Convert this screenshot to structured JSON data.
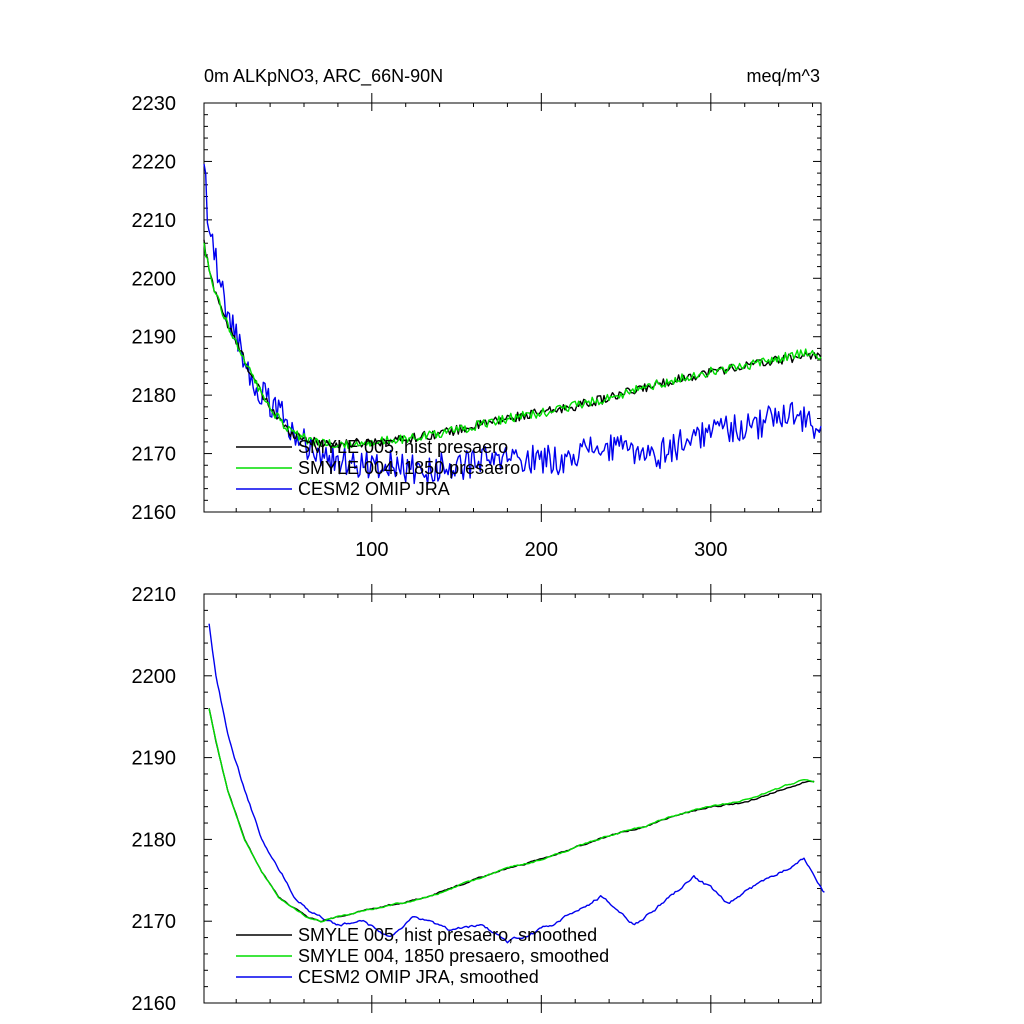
{
  "chart_data": [
    {
      "type": "line",
      "title_left": "0m ALKpNO3, ARC_66N-90N",
      "title_right": "meq/m^3",
      "xlim": [
        1,
        365
      ],
      "ylim": [
        2160,
        2230
      ],
      "x_ticks": [
        100,
        200,
        300
      ],
      "y_ticks": [
        2160,
        2170,
        2180,
        2190,
        2200,
        2210,
        2220,
        2230
      ],
      "x_minor_step": 20,
      "y_minor_step": 2,
      "grid": false,
      "legend_placement": "bottom-left",
      "series": [
        {
          "name": "SMYLE 005, hist presaero",
          "color": "#000000",
          "noise": 0.8,
          "anchors": [
            [
              1,
              2206
            ],
            [
              5,
              2200
            ],
            [
              15,
              2192
            ],
            [
              25,
              2186
            ],
            [
              35,
              2180
            ],
            [
              50,
              2174
            ],
            [
              65,
              2172
            ],
            [
              80,
              2171.5
            ],
            [
              100,
              2172
            ],
            [
              120,
              2172.5
            ],
            [
              150,
              2174
            ],
            [
              180,
              2176
            ],
            [
              210,
              2177.5
            ],
            [
              240,
              2179.5
            ],
            [
              270,
              2182
            ],
            [
              300,
              2184
            ],
            [
              330,
              2185.5
            ],
            [
              350,
              2186.5
            ],
            [
              360,
              2187
            ],
            [
              365,
              2186.5
            ]
          ]
        },
        {
          "name": "SMYLE 004, 1850 presaero",
          "color": "#00dd00",
          "noise": 0.8,
          "anchors": [
            [
              1,
              2206
            ],
            [
              5,
              2200
            ],
            [
              15,
              2192
            ],
            [
              25,
              2186
            ],
            [
              35,
              2180
            ],
            [
              50,
              2174
            ],
            [
              65,
              2172
            ],
            [
              80,
              2171.5
            ],
            [
              100,
              2172
            ],
            [
              120,
              2172.5
            ],
            [
              150,
              2174
            ],
            [
              180,
              2176
            ],
            [
              210,
              2177.5
            ],
            [
              240,
              2179.5
            ],
            [
              270,
              2182
            ],
            [
              300,
              2184
            ],
            [
              330,
              2185.5
            ],
            [
              350,
              2187
            ],
            [
              360,
              2187.5
            ],
            [
              365,
              2186.5
            ]
          ]
        },
        {
          "name": "CESM2 OMIP JRA",
          "color": "#0000ee",
          "noise": 2.6,
          "anchors": [
            [
              1,
              2221
            ],
            [
              3,
              2212
            ],
            [
              8,
              2203
            ],
            [
              15,
              2194
            ],
            [
              25,
              2186
            ],
            [
              35,
              2180
            ],
            [
              45,
              2177
            ],
            [
              60,
              2172
            ],
            [
              75,
              2169
            ],
            [
              90,
              2168.5
            ],
            [
              110,
              2168
            ],
            [
              130,
              2167
            ],
            [
              150,
              2168
            ],
            [
              180,
              2169
            ],
            [
              210,
              2169
            ],
            [
              230,
              2171
            ],
            [
              250,
              2170.5
            ],
            [
              270,
              2170
            ],
            [
              290,
              2173
            ],
            [
              310,
              2174.5
            ],
            [
              330,
              2175
            ],
            [
              345,
              2177.5
            ],
            [
              360,
              2175
            ],
            [
              365,
              2173
            ]
          ]
        }
      ]
    },
    {
      "type": "line",
      "title_left": "",
      "title_right": "",
      "xlim": [
        1,
        365
      ],
      "ylim": [
        2160,
        2210
      ],
      "x_ticks": [
        100,
        200,
        300
      ],
      "x_tick_labels_shown": false,
      "y_ticks": [
        2160,
        2170,
        2180,
        2190,
        2200,
        2210
      ],
      "x_minor_step": 20,
      "y_minor_step": 2,
      "grid": false,
      "legend_placement": "bottom-left",
      "series": [
        {
          "name": "SMYLE 005, hist presaero, smoothed",
          "color": "#000000",
          "noise": 0.25,
          "anchors": [
            [
              4,
              2196
            ],
            [
              8,
              2192
            ],
            [
              15,
              2186
            ],
            [
              25,
              2180
            ],
            [
              35,
              2176
            ],
            [
              45,
              2173
            ],
            [
              55,
              2171.5
            ],
            [
              62,
              2170.5
            ],
            [
              70,
              2170
            ],
            [
              80,
              2170.5
            ],
            [
              90,
              2171
            ],
            [
              100,
              2171.5
            ],
            [
              110,
              2172
            ],
            [
              120,
              2172.3
            ],
            [
              140,
              2173.5
            ],
            [
              160,
              2175
            ],
            [
              180,
              2176.5
            ],
            [
              200,
              2177.5
            ],
            [
              220,
              2179
            ],
            [
              240,
              2180.5
            ],
            [
              260,
              2181.5
            ],
            [
              280,
              2183
            ],
            [
              300,
              2184
            ],
            [
              320,
              2184.5
            ],
            [
              340,
              2186
            ],
            [
              355,
              2187
            ],
            [
              361,
              2187
            ]
          ]
        },
        {
          "name": "SMYLE 004, 1850 presaero, smoothed",
          "color": "#00dd00",
          "noise": 0.25,
          "anchors": [
            [
              4,
              2196
            ],
            [
              8,
              2192
            ],
            [
              15,
              2186
            ],
            [
              25,
              2180
            ],
            [
              35,
              2176
            ],
            [
              45,
              2173
            ],
            [
              55,
              2171.5
            ],
            [
              62,
              2170.5
            ],
            [
              70,
              2170
            ],
            [
              80,
              2170.5
            ],
            [
              90,
              2171
            ],
            [
              100,
              2171.5
            ],
            [
              110,
              2172
            ],
            [
              120,
              2172.3
            ],
            [
              140,
              2173.5
            ],
            [
              160,
              2175
            ],
            [
              180,
              2176.5
            ],
            [
              200,
              2177.5
            ],
            [
              220,
              2179
            ],
            [
              240,
              2180.5
            ],
            [
              260,
              2181.5
            ],
            [
              280,
              2183
            ],
            [
              300,
              2184
            ],
            [
              320,
              2184.8
            ],
            [
              340,
              2186.2
            ],
            [
              355,
              2187.4
            ],
            [
              361,
              2187
            ]
          ]
        },
        {
          "name": "CESM2 OMIP JRA, smoothed",
          "color": "#0000ee",
          "noise": 0.5,
          "anchors": [
            [
              4,
              2206.5
            ],
            [
              8,
              2200
            ],
            [
              15,
              2193
            ],
            [
              25,
              2186
            ],
            [
              35,
              2180
            ],
            [
              45,
              2176.5
            ],
            [
              55,
              2173
            ],
            [
              65,
              2171
            ],
            [
              80,
              2169.5
            ],
            [
              95,
              2170
            ],
            [
              110,
              2168
            ],
            [
              125,
              2170.5
            ],
            [
              145,
              2169
            ],
            [
              165,
              2169.5
            ],
            [
              180,
              2167.5
            ],
            [
              200,
              2169
            ],
            [
              220,
              2171
            ],
            [
              235,
              2173
            ],
            [
              255,
              2169.5
            ],
            [
              270,
              2172
            ],
            [
              290,
              2175.5
            ],
            [
              300,
              2174
            ],
            [
              310,
              2172
            ],
            [
              320,
              2173.5
            ],
            [
              335,
              2175.5
            ],
            [
              345,
              2176.5
            ],
            [
              355,
              2177.8
            ],
            [
              362,
              2175
            ],
            [
              367,
              2173.5
            ]
          ]
        }
      ]
    }
  ]
}
